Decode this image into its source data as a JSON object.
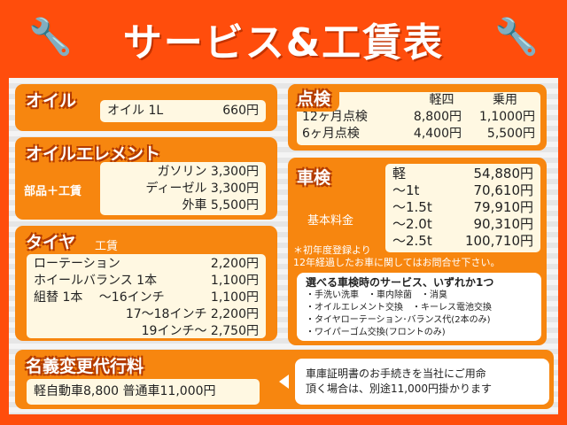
{
  "title": "サービス&工賃表",
  "oil": {
    "heading": "オイル",
    "item": "オイル 1L",
    "price": "660円"
  },
  "element": {
    "heading": "オイルエレメント",
    "label": "部品＋工賃",
    "rows": [
      {
        "name": "ガソリン",
        "price": "3,300円"
      },
      {
        "name": "ディーゼル",
        "price": "3,300円"
      },
      {
        "name": "外車",
        "price": "5,500円"
      }
    ]
  },
  "tire": {
    "heading": "タイヤ",
    "sub": "工賃",
    "rows": [
      {
        "name": "ローテーション",
        "price": "2,200円"
      },
      {
        "name": "ホイールバランス 1本",
        "price": "1,100円"
      },
      {
        "name": "組替 1本　 ～16インチ",
        "price": "1,100円"
      },
      {
        "name": "17～18インチ",
        "price": "2,200円"
      },
      {
        "name": "19インチ～",
        "price": "2,750円"
      }
    ]
  },
  "inspection": {
    "heading": "点検",
    "cols": [
      "軽四",
      "乗用"
    ],
    "rows": [
      {
        "name": "12ヶ月点検",
        "kei": "8,800円",
        "jo": "1,1000円"
      },
      {
        "name": "6ヶ月点検",
        "kei": "4,400円",
        "jo": "5,500円"
      }
    ]
  },
  "shaken": {
    "heading": "車検",
    "label": "基本料金",
    "rows": [
      {
        "name": "軽",
        "price": "54,880円"
      },
      {
        "name": "～1t",
        "price": "70,610円"
      },
      {
        "name": "～1.5t",
        "price": "79,910円"
      },
      {
        "name": "～2.0t",
        "price": "90,310円"
      },
      {
        "name": "～2.5t",
        "price": "100,710円"
      }
    ],
    "note1": "＊初年度登録より",
    "note2": "12年経過したお車に関してはお問合せ下さい。",
    "services_title": "選べる車検時のサービス、いずれか1つ",
    "services": [
      "・手洗い洗車　・車内除菌　・消臭",
      "・オイルエレメント交換　・キーレス電池交換",
      "・タイヤローテーション･バランス代(2本のみ)",
      "・ワイパーゴム交換(フロントのみ)"
    ]
  },
  "transfer": {
    "heading": "名義変更代行料",
    "price": "軽自動車8,800 普通車11,000円",
    "note1": "車庫証明書のお手続きを当社にご用命",
    "note2": "頂く場合は、別途11,000円掛かります"
  },
  "colors": {
    "border": "#ff4d0c",
    "box": "#f7860f",
    "cream": "#fff8e2"
  }
}
